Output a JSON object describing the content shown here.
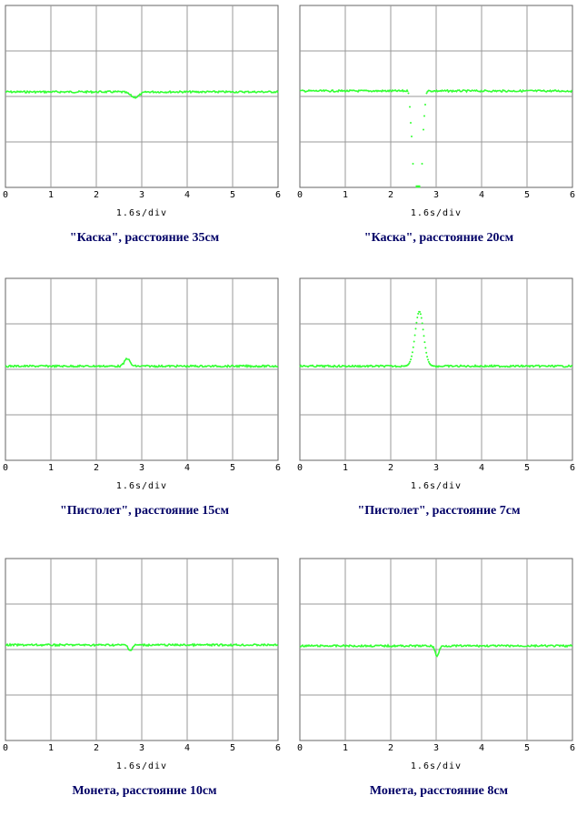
{
  "colors": {
    "trace": "#33ff33",
    "grid": "#999999",
    "frame": "#666666",
    "caption": "#000066"
  },
  "chart_data": [
    {
      "type": "line",
      "caption": "\"Каска\",  расстояние  35см",
      "xlabel": "1.6s/div",
      "xlim": [
        0,
        6
      ],
      "ylim": [
        0,
        4
      ],
      "x_ticks": [
        0,
        1,
        2,
        3,
        4,
        5,
        6
      ],
      "grid": true,
      "baseline": 2.1,
      "event": {
        "kind": "dip",
        "center": 2.85,
        "width": 0.14,
        "amplitude": -0.12
      }
    },
    {
      "type": "line",
      "caption": "\"Каска\", расстояние 20см",
      "xlabel": "1.6s/div",
      "xlim": [
        0,
        6
      ],
      "ylim": [
        0,
        4
      ],
      "x_ticks": [
        0,
        1,
        2,
        3,
        4,
        5,
        6
      ],
      "grid": true,
      "baseline": 2.12,
      "event": {
        "kind": "deep_dip",
        "center": 2.6,
        "width": 0.14,
        "amplitude": -2.1
      }
    },
    {
      "type": "line",
      "caption": "\"Пистолет\", расстояние 15см",
      "xlabel": "1.6s/div",
      "xlim": [
        0,
        6
      ],
      "ylim": [
        0,
        4
      ],
      "x_ticks": [
        0,
        1,
        2,
        3,
        4,
        5,
        6
      ],
      "grid": true,
      "baseline": 2.07,
      "event": {
        "kind": "peak",
        "center": 2.68,
        "width": 0.08,
        "amplitude": 0.17
      }
    },
    {
      "type": "line",
      "caption": "\"Пистолет\", расстояние 7см",
      "xlabel": "1.6s/div",
      "xlim": [
        0,
        6
      ],
      "ylim": [
        0,
        4
      ],
      "x_ticks": [
        0,
        1,
        2,
        3,
        4,
        5,
        6
      ],
      "grid": true,
      "baseline": 2.07,
      "event": {
        "kind": "peak",
        "center": 2.63,
        "width": 0.13,
        "amplitude": 1.2
      }
    },
    {
      "type": "line",
      "caption": "Монета, расстояние 10см",
      "xlabel": "1.6s/div",
      "xlim": [
        0,
        6
      ],
      "ylim": [
        0,
        4
      ],
      "x_ticks": [
        0,
        1,
        2,
        3,
        4,
        5,
        6
      ],
      "grid": true,
      "baseline": 2.1,
      "event": {
        "kind": "dip",
        "center": 2.75,
        "width": 0.06,
        "amplitude": -0.12
      }
    },
    {
      "type": "line",
      "caption": "Монета, расстояние 8см",
      "xlabel": "1.6s/div",
      "xlim": [
        0,
        6
      ],
      "ylim": [
        0,
        4
      ],
      "x_ticks": [
        0,
        1,
        2,
        3,
        4,
        5,
        6
      ],
      "grid": true,
      "baseline": 2.08,
      "event": {
        "kind": "dip",
        "center": 3.02,
        "width": 0.06,
        "amplitude": -0.22
      }
    }
  ]
}
